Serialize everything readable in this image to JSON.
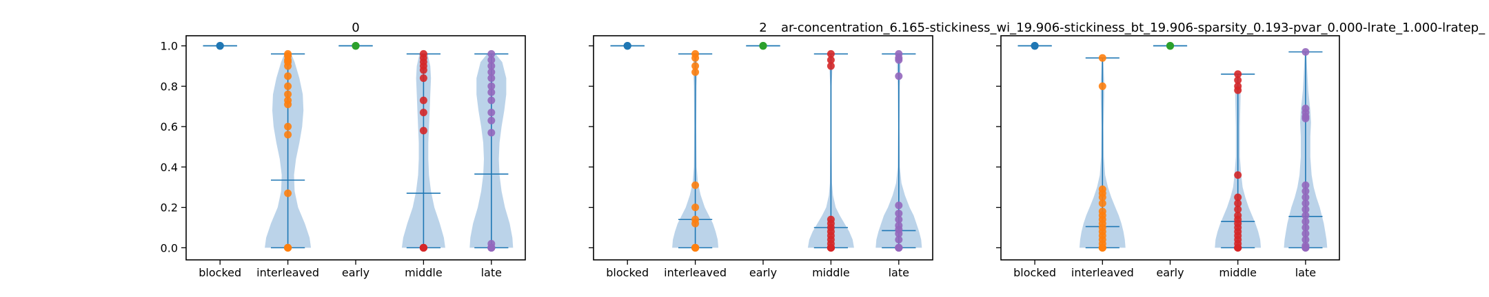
{
  "figure_title": "ar-concentration_6.165-stickiness_wi_19.906-stickiness_bt_19.906-sparsity_0.193-pvar_0.000-lrate_1.000-lratep_",
  "colors": {
    "violin_fill": "#aac8e4",
    "violin_line": "#1f77b4",
    "blocked": "#1f77b4",
    "interleaved": "#ff7f0e",
    "early": "#2ca02c",
    "middle": "#d62728",
    "late": "#9467bd"
  },
  "chart_data": [
    {
      "type": "violin",
      "title": "0",
      "categories": [
        "blocked",
        "interleaved",
        "early",
        "middle",
        "late"
      ],
      "ylim": [
        -0.06,
        1.05
      ],
      "yticks": [
        0.0,
        0.2,
        0.4,
        0.6,
        0.8,
        1.0
      ],
      "show_yticklabels": true,
      "series": [
        {
          "category": "blocked",
          "min": 1.0,
          "max": 1.0,
          "mean": 1.0,
          "points": [
            1.0,
            1.0,
            1.0,
            1.0,
            1.0
          ]
        },
        {
          "category": "interleaved",
          "min": 0.0,
          "max": 0.96,
          "mean": 0.335,
          "points": [
            0.96,
            0.95,
            0.93,
            0.92,
            0.9,
            0.85,
            0.8,
            0.76,
            0.73,
            0.71,
            0.6,
            0.56,
            0.27,
            0.0,
            0.0,
            0.0,
            0.0,
            0.0,
            0.0,
            0.0
          ]
        },
        {
          "category": "early",
          "min": 1.0,
          "max": 1.0,
          "mean": 1.0,
          "points": [
            1.0,
            1.0,
            1.0,
            1.0,
            1.0
          ]
        },
        {
          "category": "middle",
          "min": 0.0,
          "max": 0.96,
          "mean": 0.27,
          "points": [
            0.96,
            0.94,
            0.92,
            0.9,
            0.88,
            0.84,
            0.73,
            0.67,
            0.58,
            0.0,
            0.0,
            0.0,
            0.0,
            0.0,
            0.0,
            0.0,
            0.0,
            0.0,
            0.0,
            0.0
          ]
        },
        {
          "category": "late",
          "min": 0.0,
          "max": 0.96,
          "mean": 0.365,
          "points": [
            0.96,
            0.93,
            0.9,
            0.87,
            0.84,
            0.8,
            0.77,
            0.73,
            0.67,
            0.63,
            0.57,
            0.02,
            0.0,
            0.0,
            0.0,
            0.0,
            0.0,
            0.0,
            0.0,
            0.0
          ]
        }
      ],
      "violin_profile": {
        "blocked": [],
        "interleaved": [
          [
            0.0,
            0.34
          ],
          [
            0.05,
            0.32
          ],
          [
            0.12,
            0.25
          ],
          [
            0.2,
            0.15
          ],
          [
            0.28,
            0.1
          ],
          [
            0.36,
            0.09
          ],
          [
            0.44,
            0.12
          ],
          [
            0.52,
            0.17
          ],
          [
            0.6,
            0.21
          ],
          [
            0.68,
            0.23
          ],
          [
            0.76,
            0.22
          ],
          [
            0.84,
            0.17
          ],
          [
            0.92,
            0.1
          ],
          [
            0.96,
            0.05
          ]
        ],
        "early": [],
        "middle": [
          [
            0.0,
            0.32
          ],
          [
            0.05,
            0.3
          ],
          [
            0.12,
            0.24
          ],
          [
            0.2,
            0.16
          ],
          [
            0.28,
            0.11
          ],
          [
            0.36,
            0.08
          ],
          [
            0.44,
            0.07
          ],
          [
            0.52,
            0.07
          ],
          [
            0.6,
            0.08
          ],
          [
            0.68,
            0.09
          ],
          [
            0.76,
            0.1
          ],
          [
            0.84,
            0.11
          ],
          [
            0.9,
            0.1
          ],
          [
            0.96,
            0.06
          ]
        ],
        "late": [
          [
            0.0,
            0.32
          ],
          [
            0.05,
            0.31
          ],
          [
            0.12,
            0.27
          ],
          [
            0.2,
            0.2
          ],
          [
            0.28,
            0.15
          ],
          [
            0.36,
            0.12
          ],
          [
            0.44,
            0.11
          ],
          [
            0.52,
            0.12
          ],
          [
            0.6,
            0.15
          ],
          [
            0.68,
            0.19
          ],
          [
            0.76,
            0.22
          ],
          [
            0.84,
            0.22
          ],
          [
            0.92,
            0.16
          ],
          [
            0.96,
            0.06
          ]
        ]
      }
    },
    {
      "type": "violin",
      "title": "2",
      "categories": [
        "blocked",
        "interleaved",
        "early",
        "middle",
        "late"
      ],
      "ylim": [
        -0.06,
        1.05
      ],
      "yticks": [
        0.0,
        0.2,
        0.4,
        0.6,
        0.8,
        1.0
      ],
      "show_yticklabels": false,
      "series": [
        {
          "category": "blocked",
          "min": 1.0,
          "max": 1.0,
          "mean": 1.0,
          "points": [
            1.0,
            1.0,
            1.0,
            1.0,
            1.0
          ]
        },
        {
          "category": "interleaved",
          "min": 0.0,
          "max": 0.96,
          "mean": 0.14,
          "points": [
            0.96,
            0.94,
            0.9,
            0.87,
            0.31,
            0.2,
            0.14,
            0.12,
            0.0,
            0.0,
            0.0,
            0.0,
            0.0,
            0.0,
            0.0,
            0.0,
            0.0,
            0.0,
            0.0,
            0.0
          ]
        },
        {
          "category": "early",
          "min": 1.0,
          "max": 1.0,
          "mean": 1.0,
          "points": [
            1.0,
            1.0,
            1.0,
            1.0,
            1.0
          ]
        },
        {
          "category": "middle",
          "min": 0.0,
          "max": 0.96,
          "mean": 0.1,
          "points": [
            0.96,
            0.93,
            0.9,
            0.14,
            0.12,
            0.1,
            0.08,
            0.06,
            0.04,
            0.02,
            0.0,
            0.0,
            0.0,
            0.0,
            0.0,
            0.0,
            0.0,
            0.0,
            0.0,
            0.0
          ]
        },
        {
          "category": "late",
          "min": 0.0,
          "max": 0.96,
          "mean": 0.085,
          "points": [
            0.96,
            0.94,
            0.93,
            0.85,
            0.21,
            0.17,
            0.14,
            0.11,
            0.09,
            0.07,
            0.04,
            0.0,
            0.0,
            0.0,
            0.0,
            0.0,
            0.0,
            0.0,
            0.0,
            0.0
          ]
        }
      ],
      "violin_profile": {
        "blocked": [],
        "interleaved": [
          [
            0.0,
            0.34
          ],
          [
            0.04,
            0.33
          ],
          [
            0.08,
            0.3
          ],
          [
            0.12,
            0.26
          ],
          [
            0.16,
            0.2
          ],
          [
            0.2,
            0.14
          ],
          [
            0.26,
            0.08
          ],
          [
            0.32,
            0.04
          ],
          [
            0.4,
            0.02
          ],
          [
            0.6,
            0.015
          ],
          [
            0.8,
            0.02
          ],
          [
            0.88,
            0.03
          ],
          [
            0.93,
            0.025
          ],
          [
            0.96,
            0.01
          ]
        ],
        "early": [],
        "middle": [
          [
            0.0,
            0.34
          ],
          [
            0.04,
            0.32
          ],
          [
            0.08,
            0.27
          ],
          [
            0.12,
            0.2
          ],
          [
            0.16,
            0.13
          ],
          [
            0.2,
            0.07
          ],
          [
            0.26,
            0.03
          ],
          [
            0.32,
            0.015
          ],
          [
            0.5,
            0.01
          ],
          [
            0.8,
            0.01
          ],
          [
            0.88,
            0.02
          ],
          [
            0.93,
            0.025
          ],
          [
            0.96,
            0.01
          ]
        ],
        "late": [
          [
            0.0,
            0.34
          ],
          [
            0.04,
            0.33
          ],
          [
            0.08,
            0.3
          ],
          [
            0.12,
            0.26
          ],
          [
            0.16,
            0.22
          ],
          [
            0.2,
            0.16
          ],
          [
            0.26,
            0.09
          ],
          [
            0.32,
            0.04
          ],
          [
            0.4,
            0.015
          ],
          [
            0.6,
            0.01
          ],
          [
            0.8,
            0.015
          ],
          [
            0.88,
            0.025
          ],
          [
            0.93,
            0.025
          ],
          [
            0.96,
            0.01
          ]
        ]
      }
    },
    {
      "type": "violin",
      "title": "",
      "categories": [
        "blocked",
        "interleaved",
        "early",
        "middle",
        "late"
      ],
      "ylim": [
        -0.06,
        1.05
      ],
      "yticks": [
        0.0,
        0.2,
        0.4,
        0.6,
        0.8,
        1.0
      ],
      "show_yticklabels": false,
      "series": [
        {
          "category": "blocked",
          "min": 1.0,
          "max": 1.0,
          "mean": 1.0,
          "points": [
            1.0,
            1.0,
            1.0,
            1.0,
            1.0
          ]
        },
        {
          "category": "interleaved",
          "min": 0.0,
          "max": 0.94,
          "mean": 0.105,
          "points": [
            0.94,
            0.8,
            0.29,
            0.27,
            0.25,
            0.22,
            0.18,
            0.16,
            0.14,
            0.12,
            0.1,
            0.08,
            0.06,
            0.04,
            0.02,
            0.0,
            0.0,
            0.0,
            0.0,
            0.0
          ]
        },
        {
          "category": "early",
          "min": 1.0,
          "max": 1.0,
          "mean": 1.0,
          "points": [
            1.0,
            1.0,
            1.0,
            1.0,
            1.0
          ]
        },
        {
          "category": "middle",
          "min": 0.0,
          "max": 0.86,
          "mean": 0.13,
          "points": [
            0.86,
            0.83,
            0.8,
            0.78,
            0.36,
            0.25,
            0.22,
            0.19,
            0.16,
            0.14,
            0.12,
            0.1,
            0.08,
            0.06,
            0.04,
            0.02,
            0.0,
            0.0,
            0.0,
            0.0
          ]
        },
        {
          "category": "late",
          "min": 0.0,
          "max": 0.97,
          "mean": 0.155,
          "points": [
            0.97,
            0.69,
            0.67,
            0.65,
            0.64,
            0.31,
            0.28,
            0.25,
            0.22,
            0.19,
            0.16,
            0.13,
            0.1,
            0.07,
            0.04,
            0.01,
            0.0,
            0.0,
            0.0,
            0.0
          ]
        }
      ],
      "violin_profile": {
        "blocked": [],
        "interleaved": [
          [
            0.0,
            0.34
          ],
          [
            0.04,
            0.33
          ],
          [
            0.08,
            0.31
          ],
          [
            0.12,
            0.28
          ],
          [
            0.16,
            0.24
          ],
          [
            0.2,
            0.19
          ],
          [
            0.25,
            0.13
          ],
          [
            0.3,
            0.08
          ],
          [
            0.36,
            0.04
          ],
          [
            0.45,
            0.02
          ],
          [
            0.6,
            0.015
          ],
          [
            0.75,
            0.025
          ],
          [
            0.82,
            0.025
          ],
          [
            0.9,
            0.015
          ],
          [
            0.94,
            0.01
          ]
        ],
        "early": [],
        "middle": [
          [
            0.0,
            0.34
          ],
          [
            0.04,
            0.33
          ],
          [
            0.08,
            0.3
          ],
          [
            0.12,
            0.26
          ],
          [
            0.16,
            0.21
          ],
          [
            0.2,
            0.16
          ],
          [
            0.25,
            0.11
          ],
          [
            0.3,
            0.07
          ],
          [
            0.36,
            0.05
          ],
          [
            0.45,
            0.03
          ],
          [
            0.6,
            0.03
          ],
          [
            0.75,
            0.04
          ],
          [
            0.8,
            0.04
          ],
          [
            0.86,
            0.01
          ]
        ],
        "late": [
          [
            0.0,
            0.32
          ],
          [
            0.04,
            0.31
          ],
          [
            0.08,
            0.29
          ],
          [
            0.12,
            0.27
          ],
          [
            0.16,
            0.24
          ],
          [
            0.2,
            0.21
          ],
          [
            0.25,
            0.16
          ],
          [
            0.3,
            0.12
          ],
          [
            0.36,
            0.09
          ],
          [
            0.45,
            0.07
          ],
          [
            0.55,
            0.07
          ],
          [
            0.62,
            0.08
          ],
          [
            0.68,
            0.07
          ],
          [
            0.78,
            0.04
          ],
          [
            0.9,
            0.02
          ],
          [
            0.97,
            0.01
          ]
        ]
      }
    }
  ]
}
